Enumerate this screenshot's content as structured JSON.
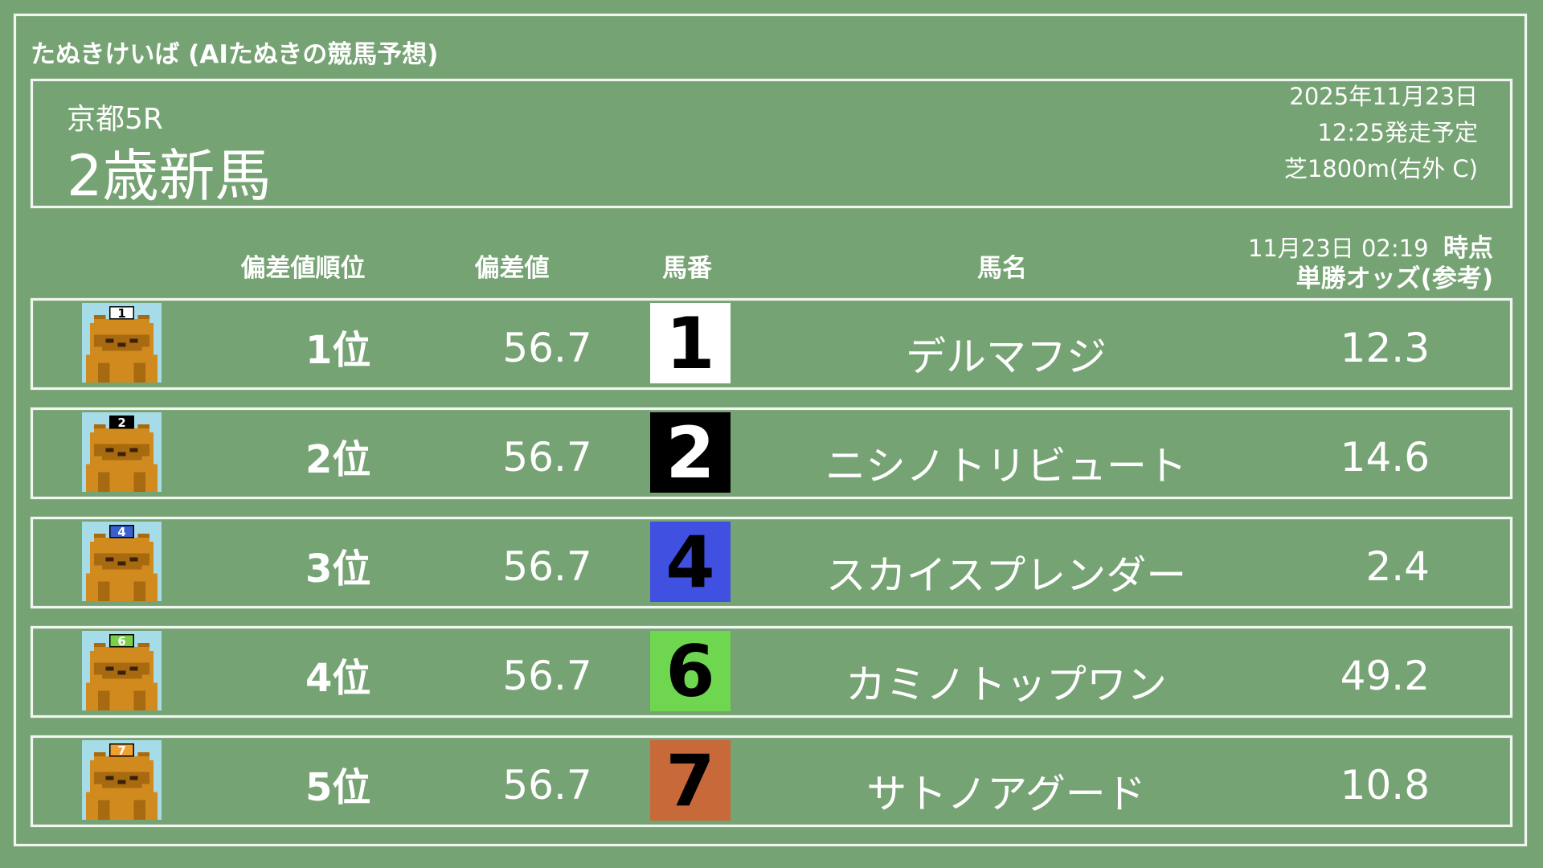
{
  "app_title": "たぬきけいば (AIたぬきの競馬予想)",
  "race": {
    "venue": "京都5R",
    "name": "2歳新馬",
    "date": "2025年11月23日",
    "start_time": "12:25発走予定",
    "course": "芝1800m(右外 C)"
  },
  "table": {
    "headers": {
      "rank": "偏差値順位",
      "deviation": "偏差値",
      "number": "馬番",
      "name": "馬名",
      "odds_timestamp": "11月23日 02:19",
      "odds_timestamp_suffix": "時点",
      "odds": "単勝オッズ(参考)"
    },
    "rows": [
      {
        "rank": "1位",
        "deviation": "56.7",
        "number": "1",
        "name": "デルマフジ",
        "odds": "12.3",
        "box_color": "#ffffff",
        "text_color": "#000000",
        "icon": "tanuki-icon"
      },
      {
        "rank": "2位",
        "deviation": "56.7",
        "number": "2",
        "name": "ニシノトリビュート",
        "odds": "14.6",
        "box_color": "#000000",
        "text_color": "#ffffff",
        "icon": "tanuki-icon"
      },
      {
        "rank": "3位",
        "deviation": "56.7",
        "number": "4",
        "name": "スカイスプレンダー",
        "odds": "2.4",
        "box_color": "#4050e0",
        "text_color": "#000000",
        "icon": "tanuki-icon"
      },
      {
        "rank": "4位",
        "deviation": "56.7",
        "number": "6",
        "name": "カミノトップワン",
        "odds": "49.2",
        "box_color": "#6fd64f",
        "text_color": "#000000",
        "icon": "tanuki-icon"
      },
      {
        "rank": "5位",
        "deviation": "56.7",
        "number": "7",
        "name": "サトノアグード",
        "odds": "10.8",
        "box_color": "#c8693a",
        "text_color": "#000000",
        "icon": "tanuki-icon"
      }
    ]
  }
}
